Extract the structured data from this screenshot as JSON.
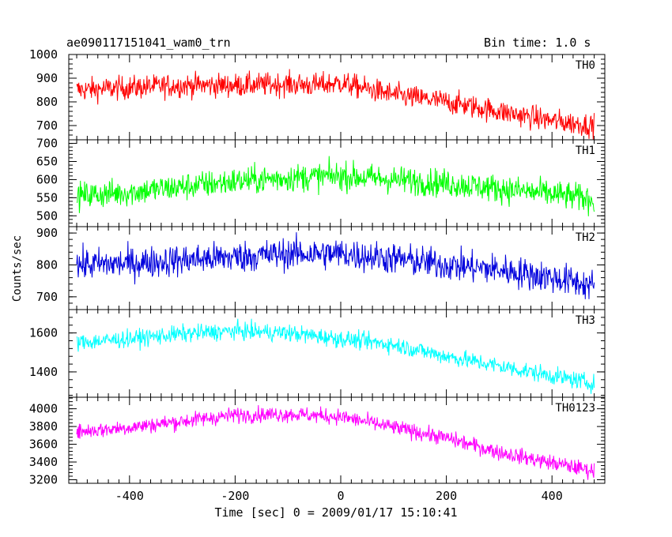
{
  "header": {
    "title": "ae090117151041_wam0_trn",
    "bin_time": "Bin time: 1.0 s"
  },
  "axes": {
    "xlabel": "Time [sec] 0 = 2009/01/17 15:10:41",
    "ylabel": "Counts/sec"
  },
  "chart_data": {
    "type": "line",
    "title": "ae090117151041_wam0_trn",
    "xlabel": "Time [sec] 0 = 2009/01/17 15:10:41",
    "ylabel": "Counts/sec",
    "xlim": [
      -515,
      500
    ],
    "x_ticks": [
      -400,
      -200,
      0,
      200,
      400
    ],
    "grid": false,
    "panels": [
      {
        "name": "TH0",
        "color": "#ff0000",
        "ylim": [
          640,
          1000
        ],
        "y_ticks": [
          700,
          800,
          900,
          1000
        ],
        "x": [
          -500,
          -400,
          -300,
          -200,
          -100,
          -50,
          0,
          50,
          100,
          200,
          300,
          400,
          480
        ],
        "values": [
          850,
          860,
          870,
          870,
          875,
          870,
          880,
          855,
          830,
          800,
          760,
          720,
          700
        ],
        "noise": 45
      },
      {
        "name": "TH1",
        "color": "#00ff00",
        "ylim": [
          470,
          710
        ],
        "y_ticks": [
          500,
          550,
          600,
          650,
          700
        ],
        "x": [
          -500,
          -400,
          -300,
          -200,
          -100,
          0,
          100,
          200,
          300,
          400,
          480
        ],
        "values": [
          555,
          565,
          580,
          595,
          605,
          610,
          600,
          590,
          575,
          560,
          545
        ],
        "noise": 35
      },
      {
        "name": "TH2",
        "color": "#0000dd",
        "ylim": [
          660,
          920
        ],
        "y_ticks": [
          700,
          800,
          900
        ],
        "x": [
          -500,
          -400,
          -300,
          -200,
          -100,
          0,
          100,
          200,
          300,
          400,
          480
        ],
        "values": [
          800,
          805,
          815,
          825,
          835,
          835,
          820,
          800,
          785,
          760,
          735
        ],
        "noise": 45
      },
      {
        "name": "TH3",
        "color": "#00ffff",
        "ylim": [
          1270,
          1720
        ],
        "y_ticks": [
          1400,
          1600
        ],
        "x": [
          -500,
          -400,
          -300,
          -200,
          -100,
          0,
          100,
          200,
          300,
          400,
          480
        ],
        "values": [
          1550,
          1570,
          1595,
          1610,
          1600,
          1570,
          1540,
          1480,
          1430,
          1380,
          1340
        ],
        "noise": 40
      },
      {
        "name": "TH0123",
        "color": "#ff00ff",
        "ylim": [
          3160,
          4130
        ],
        "y_ticks": [
          3200,
          3400,
          3600,
          3800,
          4000
        ],
        "x": [
          -500,
          -400,
          -300,
          -200,
          -100,
          0,
          100,
          200,
          300,
          400,
          480
        ],
        "values": [
          3740,
          3790,
          3860,
          3930,
          3940,
          3910,
          3790,
          3670,
          3510,
          3390,
          3300
        ],
        "noise": 80
      }
    ]
  }
}
